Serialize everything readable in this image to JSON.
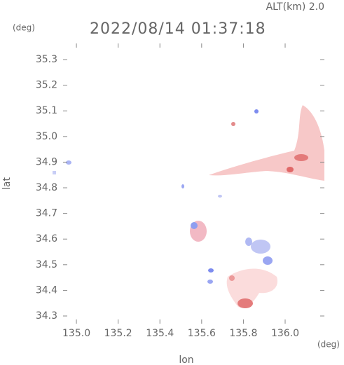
{
  "map": {
    "altitude": "ALT(km)  2.0",
    "timestamp": "2022/08/14 01:37:18",
    "y_unit": "(deg)",
    "x_unit": "(deg)",
    "y_label": "lat",
    "x_label": "lon",
    "xlim": [
      134.936,
      136.188
    ],
    "ylim": [
      34.27,
      35.363
    ],
    "xticks": [
      {
        "value": 135.0,
        "label": "135.0"
      },
      {
        "value": 135.2,
        "label": "135.2"
      },
      {
        "value": 135.4,
        "label": "135.4"
      },
      {
        "value": 135.6,
        "label": "135.6"
      },
      {
        "value": 135.8,
        "label": "135.8"
      },
      {
        "value": 136.0,
        "label": "136.0"
      }
    ],
    "yticks": [
      {
        "value": 34.3,
        "label": "34.3"
      },
      {
        "value": 34.4,
        "label": "34.4"
      },
      {
        "value": 34.5,
        "label": "34.5"
      },
      {
        "value": 34.6,
        "label": "34.6"
      },
      {
        "value": 34.7,
        "label": "34.7"
      },
      {
        "value": 34.8,
        "label": "34.8"
      },
      {
        "value": 34.9,
        "label": "34.9"
      },
      {
        "value": 35.0,
        "label": "35.0"
      },
      {
        "value": 35.1,
        "label": "35.1"
      },
      {
        "value": 35.2,
        "label": "35.2"
      },
      {
        "value": 35.3,
        "label": "35.3"
      }
    ]
  }
}
